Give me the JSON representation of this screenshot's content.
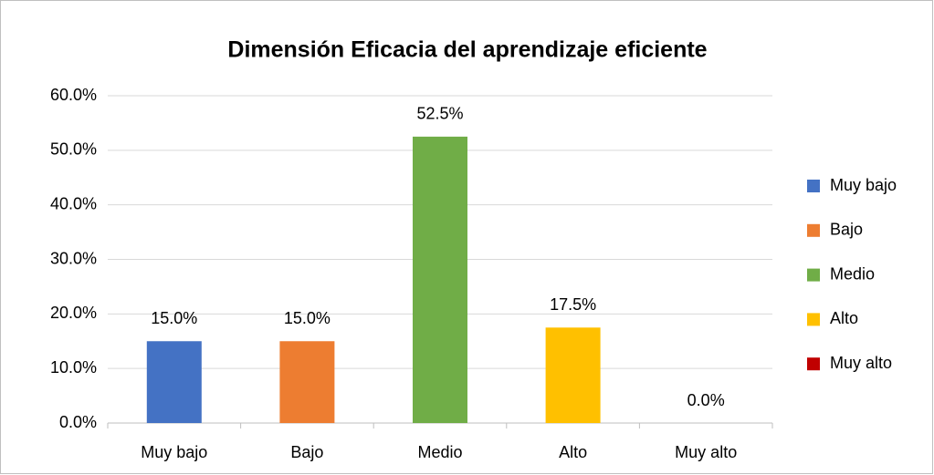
{
  "chart_data": {
    "type": "bar",
    "title": "Dimensión Eficacia del aprendizaje eficiente",
    "categories": [
      "Muy bajo",
      "Bajo",
      "Medio",
      "Alto",
      "Muy alto"
    ],
    "values": [
      15,
      15,
      52.5,
      17.5,
      0
    ],
    "value_labels": [
      "15.0%",
      "15.0%",
      "52.5%",
      "17.5%",
      "0.0%"
    ],
    "colors": [
      "#4472c4",
      "#ed7d31",
      "#70ad47",
      "#ffc000",
      "#c00000"
    ],
    "ylim": [
      0,
      60
    ],
    "yticks": [
      {
        "value": 0,
        "label": "0.0%"
      },
      {
        "value": 10,
        "label": "10.0%"
      },
      {
        "value": 20,
        "label": "20.0%"
      },
      {
        "value": 30,
        "label": "30.0%"
      },
      {
        "value": 40,
        "label": "40.0%"
      },
      {
        "value": 50,
        "label": "50.0%"
      },
      {
        "value": 60,
        "label": "60.0%"
      }
    ],
    "grid": true,
    "legend": "right"
  }
}
